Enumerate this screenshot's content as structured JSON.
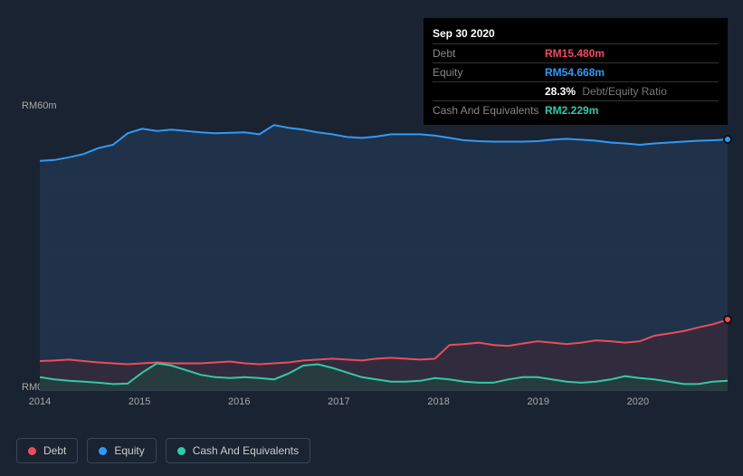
{
  "tooltip": {
    "title": "Sep 30 2020",
    "rows": [
      {
        "label": "Debt",
        "value": "RM15.480m",
        "color": "#eb4d5c"
      },
      {
        "label": "Equity",
        "value": "RM54.668m",
        "color": "#2f9af7"
      },
      {
        "label": "",
        "value": "28.3%",
        "secondary": "Debt/Equity Ratio",
        "color": "#ffffff"
      },
      {
        "label": "Cash And Equivalents",
        "value": "RM2.229m",
        "color": "#33c9a7"
      }
    ]
  },
  "chart": {
    "type": "area",
    "background": "#1a2332",
    "plot_background": "#1f2a3c",
    "grid_color": "#2a3444",
    "y_axis": {
      "min": 0,
      "max": 60,
      "unit_prefix": "RM",
      "unit_suffix": "m",
      "labels": [
        "RM60m",
        "RM0"
      ]
    },
    "x_axis": {
      "years": [
        "2014",
        "2015",
        "2016",
        "2017",
        "2018",
        "2019",
        "2020"
      ]
    },
    "series": {
      "equity": {
        "label": "Equity",
        "color": "#2f9af7",
        "fill": "#21354e",
        "fill_opacity": 0.85,
        "y": [
          50,
          50.2,
          50.8,
          51.5,
          52.8,
          53.5,
          56,
          57,
          56.5,
          56.8,
          56.5,
          56.2,
          56,
          56.1,
          56.2,
          55.8,
          57.8,
          57.2,
          56.8,
          56.2,
          55.8,
          55.2,
          55.0,
          55.3,
          55.8,
          55.8,
          55.8,
          55.5,
          55.0,
          54.5,
          54.3,
          54.2,
          54.2,
          54.2,
          54.3,
          54.6,
          54.8,
          54.6,
          54.4,
          54.0,
          53.8,
          53.5,
          53.8,
          54.0,
          54.2,
          54.4,
          54.5,
          54.668
        ]
      },
      "debt": {
        "label": "Debt",
        "color": "#eb4d5c",
        "fill": "#3a2a38",
        "fill_opacity": 0.65,
        "y": [
          6.5,
          6.6,
          6.8,
          6.5,
          6.2,
          6.0,
          5.8,
          6.0,
          6.2,
          6.0,
          6.0,
          6.0,
          6.2,
          6.4,
          6.0,
          5.8,
          6.0,
          6.2,
          6.6,
          6.8,
          7.0,
          6.8,
          6.6,
          7.0,
          7.2,
          7.0,
          6.8,
          7.0,
          10.0,
          10.2,
          10.5,
          10.0,
          9.8,
          10.3,
          10.8,
          10.5,
          10.2,
          10.5,
          11.0,
          10.8,
          10.5,
          10.8,
          12.0,
          12.5,
          13.0,
          13.8,
          14.5,
          15.48
        ]
      },
      "cash": {
        "label": "Cash And Equivalents",
        "color": "#33c9a7",
        "fill": "#24413f",
        "fill_opacity": 0.75,
        "y": [
          3.0,
          2.5,
          2.2,
          2.0,
          1.8,
          1.5,
          1.6,
          4.0,
          6.0,
          5.5,
          4.5,
          3.5,
          3.0,
          2.8,
          3.0,
          2.8,
          2.5,
          3.8,
          5.5,
          5.8,
          5.0,
          4.0,
          3.0,
          2.5,
          2.0,
          2.0,
          2.2,
          2.8,
          2.5,
          2.0,
          1.8,
          1.8,
          2.5,
          3.0,
          3.0,
          2.5,
          2.0,
          1.8,
          2.0,
          2.5,
          3.2,
          2.8,
          2.5,
          2.0,
          1.5,
          1.5,
          2.0,
          2.229
        ]
      }
    },
    "legend": [
      {
        "label": "Debt",
        "color": "#eb4d5c"
      },
      {
        "label": "Equity",
        "color": "#2f9af7"
      },
      {
        "label": "Cash And Equivalents",
        "color": "#33c9a7"
      }
    ],
    "end_markers": {
      "equity": {
        "color": "#2f9af7",
        "y": 54.668
      },
      "debt": {
        "color": "#eb4d5c",
        "y": 15.48
      }
    }
  }
}
